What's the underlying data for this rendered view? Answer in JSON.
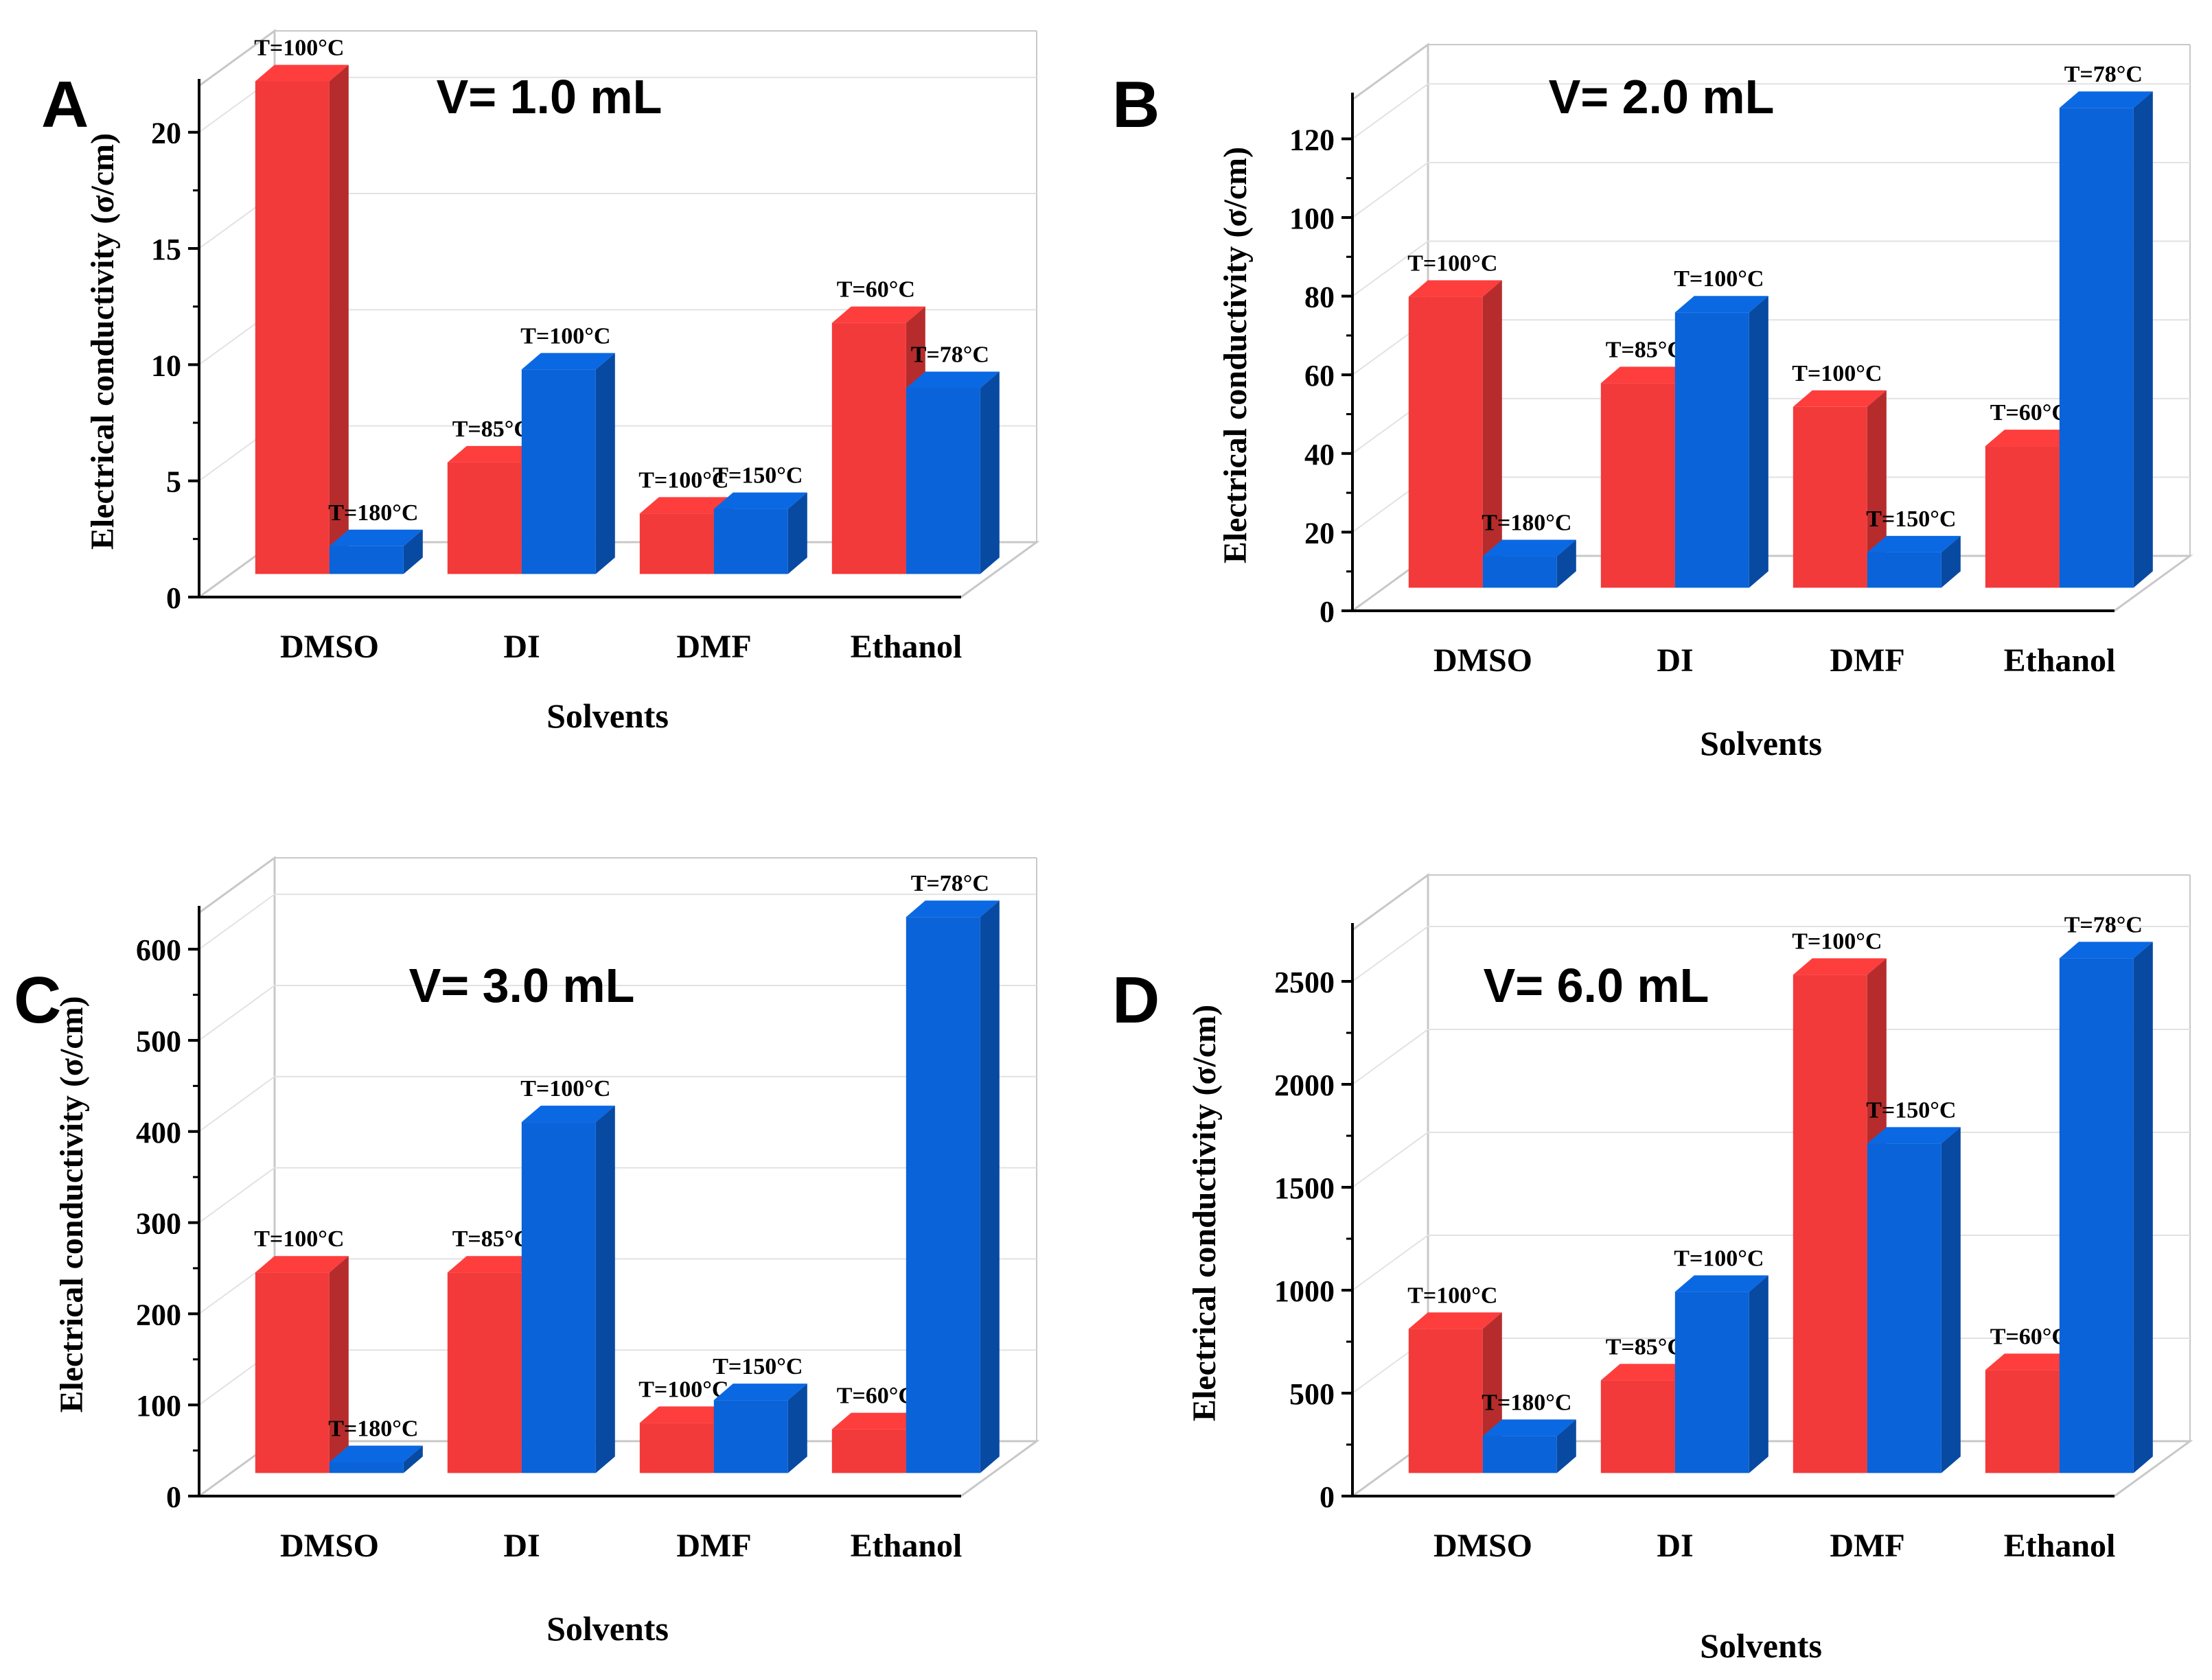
{
  "figure": {
    "panels": [
      {
        "letter": "A",
        "volume_label": "V= 1.0 mL"
      },
      {
        "letter": "B",
        "volume_label": "V= 2.0 mL"
      },
      {
        "letter": "C",
        "volume_label": "V= 3.0 mL"
      },
      {
        "letter": "D",
        "volume_label": "V= 6.0 mL"
      }
    ]
  },
  "colors": {
    "red": "#f23a3a",
    "blue": "#0a63d8",
    "axis": "#000000",
    "grid": "#c8c8c8"
  },
  "chart_data": [
    {
      "type": "bar",
      "title": "V= 1.0 mL",
      "xlabel": "Solvents",
      "ylabel": "Electrical conductivity (σ/cm)",
      "ylim": [
        0,
        22
      ],
      "yticks": [
        0,
        5,
        10,
        15,
        20
      ],
      "categories": [
        "DMSO",
        "DI",
        "DMF",
        "Ethanol"
      ],
      "series": [
        {
          "name": "red",
          "values": [
            21.2,
            4.8,
            2.6,
            10.8
          ],
          "labels": [
            "T=100°C",
            "T=85°C",
            "T=100°C",
            "T=60°C"
          ]
        },
        {
          "name": "blue",
          "values": [
            1.2,
            8.8,
            2.8,
            8.0
          ],
          "labels": [
            "T=180°C",
            "T=100°C",
            "T=150°C",
            "T=78°C"
          ]
        }
      ]
    },
    {
      "type": "bar",
      "title": "V= 2.0 mL",
      "xlabel": "Solvents",
      "ylabel": "Electrical conductivity (σ/cm)",
      "ylim": [
        0,
        130
      ],
      "yticks": [
        0,
        20,
        40,
        60,
        80,
        100,
        120
      ],
      "categories": [
        "DMSO",
        "DI",
        "DMF",
        "Ethanol"
      ],
      "series": [
        {
          "name": "red",
          "values": [
            74,
            52,
            46,
            36
          ],
          "labels": [
            "T=100°C",
            "T=85°C",
            "T=100°C",
            "T=60°C"
          ]
        },
        {
          "name": "blue",
          "values": [
            8,
            70,
            9,
            122
          ],
          "labels": [
            "T=180°C",
            "T=100°C",
            "T=150°C",
            "T=78°C"
          ]
        }
      ]
    },
    {
      "type": "bar",
      "title": "V= 3.0 mL",
      "xlabel": "Solvents",
      "ylabel": "Electrical conductivity (σ/cm)",
      "ylim": [
        0,
        640
      ],
      "yticks": [
        0,
        100,
        200,
        300,
        400,
        500,
        600
      ],
      "categories": [
        "DMSO",
        "DI",
        "DMF",
        "Ethanol"
      ],
      "series": [
        {
          "name": "red",
          "values": [
            220,
            220,
            55,
            48
          ],
          "labels": [
            "T=100°C",
            "T=85°C",
            "T=100°C",
            "T=60°C"
          ]
        },
        {
          "name": "blue",
          "values": [
            12,
            385,
            80,
            610
          ],
          "labels": [
            "T=180°C",
            "T=100°C",
            "T=150°C",
            "T=78°C"
          ]
        }
      ]
    },
    {
      "type": "bar",
      "title": "V= 6.0 mL",
      "xlabel": "Solvents",
      "ylabel": "Electrical conductivity (σ/cm)",
      "ylim": [
        0,
        2750
      ],
      "yticks": [
        0,
        500,
        1000,
        1500,
        2000,
        2500
      ],
      "categories": [
        "DMSO",
        "DI",
        "DMF",
        "Ethanol"
      ],
      "series": [
        {
          "name": "red",
          "values": [
            700,
            450,
            2420,
            500
          ],
          "labels": [
            "T=100°C",
            "T=85°C",
            "T=100°C",
            "T=60°C"
          ]
        },
        {
          "name": "blue",
          "values": [
            180,
            880,
            1600,
            2500
          ],
          "labels": [
            "T=180°C",
            "T=100°C",
            "T=150°C",
            "T=78°C"
          ]
        }
      ]
    }
  ]
}
